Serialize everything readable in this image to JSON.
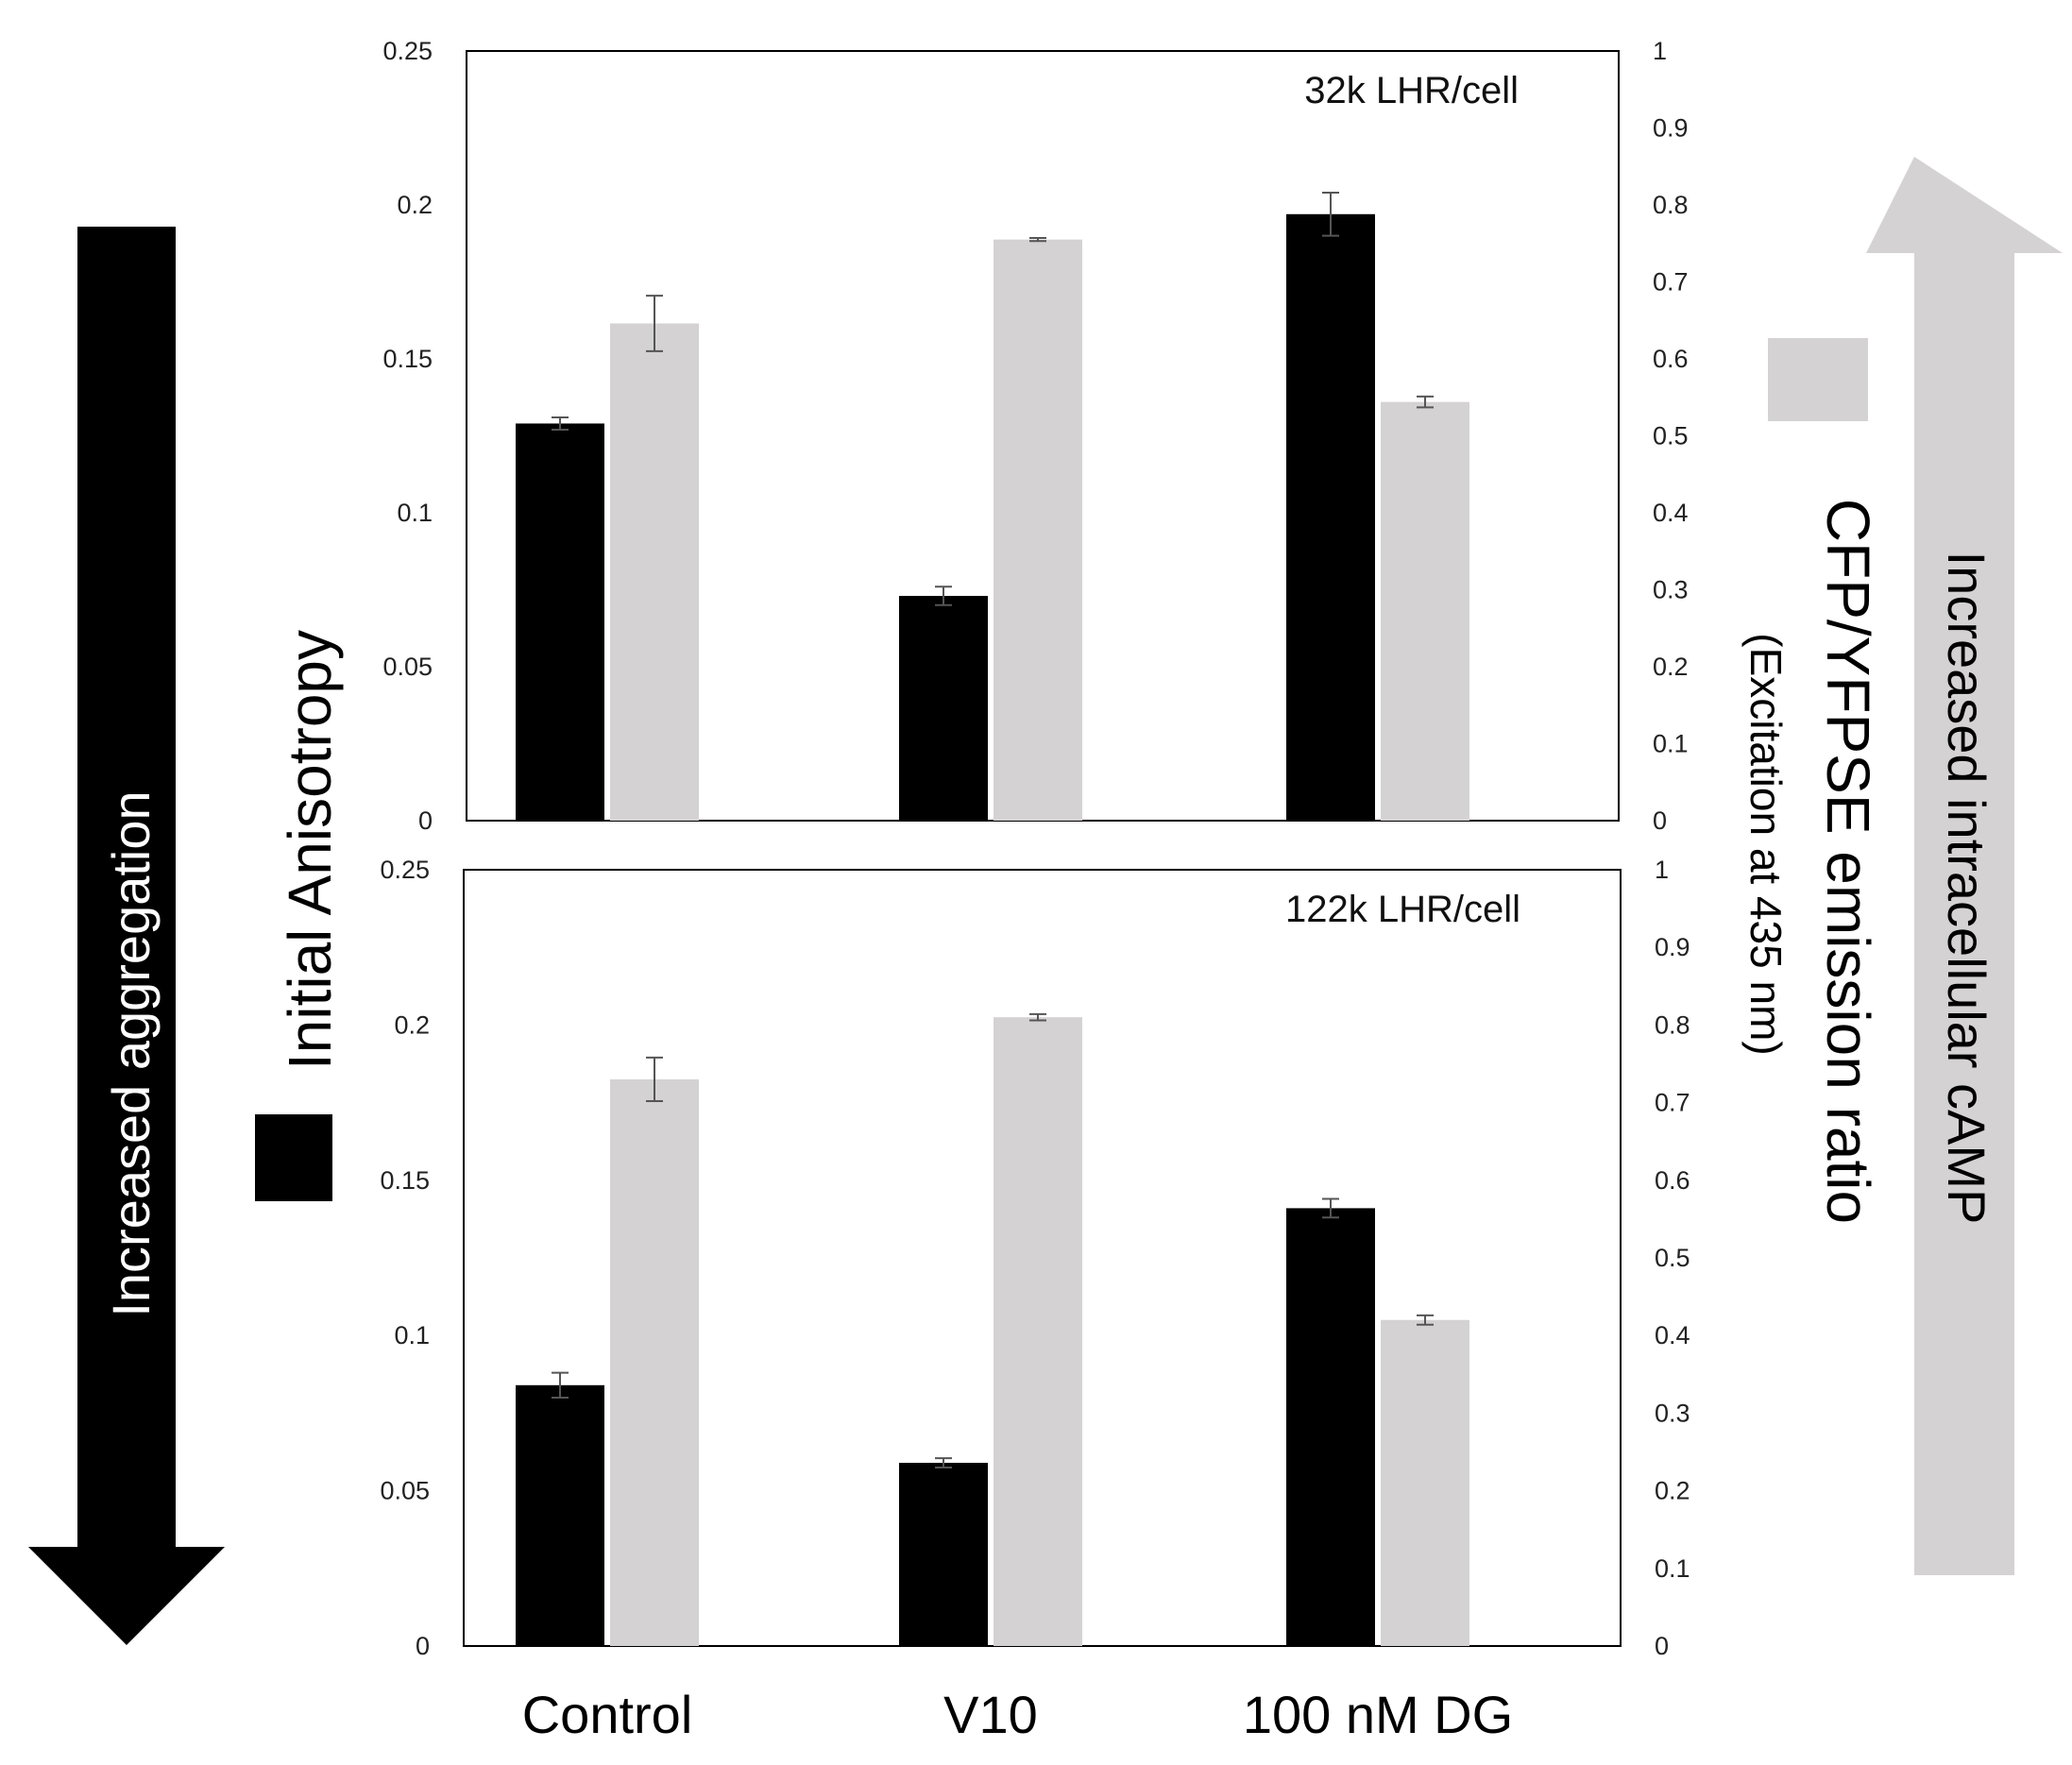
{
  "colors": {
    "anisotropy": "#000000",
    "ratio": "#d4d2d3",
    "error_bar": "#555555",
    "down_arrow": "#000000",
    "up_arrow": "#d4d2d3"
  },
  "labels": {
    "left_axis": "Initial Anisotropy",
    "right_axis_line1": "CFP/YFPSE emission ratio",
    "right_axis_line2": "(Excitation at 435 nm)",
    "down_arrow": "Increased aggregation",
    "up_arrow": "Increased intracellular cAMP"
  },
  "chart_data": [
    {
      "type": "bar",
      "panel_label": "32k LHR/cell",
      "categories": [
        "Control",
        "V10",
        "100 nM DG"
      ],
      "series": [
        {
          "axis": "left",
          "values": [
            0.129,
            0.073,
            0.197
          ],
          "errors": [
            0.002,
            0.003,
            0.007
          ]
        },
        {
          "axis": "right",
          "values": [
            0.646,
            0.755,
            0.544
          ],
          "errors": [
            0.036,
            0.002,
            0.007
          ]
        }
      ],
      "ylim_left": [
        0,
        0.25
      ],
      "ylim_right": [
        0,
        1
      ],
      "yticks_left": [
        "0",
        "0.05",
        "0.1",
        "0.15",
        "0.2",
        "0.25"
      ],
      "yticks_right": [
        "0",
        "0.1",
        "0.2",
        "0.3",
        "0.4",
        "0.5",
        "0.6",
        "0.7",
        "0.8",
        "0.9",
        "1"
      ]
    },
    {
      "type": "bar",
      "panel_label": "122k LHR/cell",
      "categories": [
        "Control",
        "V10",
        "100 nM DG"
      ],
      "series": [
        {
          "axis": "left",
          "values": [
            0.084,
            0.059,
            0.141
          ],
          "errors": [
            0.004,
            0.0015,
            0.003
          ]
        },
        {
          "axis": "right",
          "values": [
            0.73,
            0.81,
            0.42
          ],
          "errors": [
            0.028,
            0.004,
            0.006
          ]
        }
      ],
      "ylim_left": [
        0,
        0.25
      ],
      "ylim_right": [
        0,
        1
      ],
      "yticks_left": [
        "0",
        "0.05",
        "0.1",
        "0.15",
        "0.2",
        "0.25"
      ],
      "yticks_right": [
        "0",
        "0.1",
        "0.2",
        "0.3",
        "0.4",
        "0.5",
        "0.6",
        "0.7",
        "0.8",
        "0.9",
        "1"
      ]
    }
  ]
}
